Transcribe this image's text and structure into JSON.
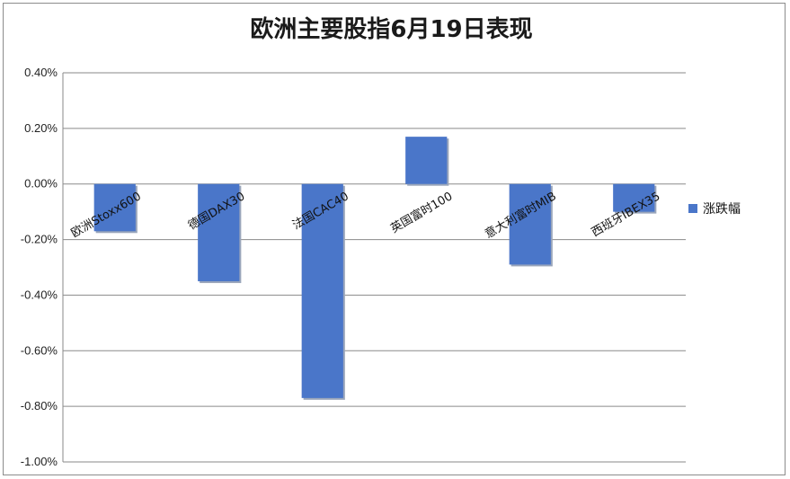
{
  "chart_data": {
    "type": "bar",
    "title": "欧洲主要股指6月19日表现",
    "categories": [
      "欧洲Stoxx600",
      "德国DAX30",
      "法国CAC40",
      "英国富时100",
      "意大利富时MIB",
      "西班牙IBEX35"
    ],
    "series": [
      {
        "name": "涨跌幅",
        "values": [
          -0.17,
          -0.35,
          -0.77,
          0.17,
          -0.29,
          -0.1
        ],
        "color": "#4a76c9"
      }
    ],
    "ylim": [
      -1.0,
      0.4
    ],
    "yticks": [
      "0.40%",
      "0.20%",
      "0.00%",
      "-0.20%",
      "-0.40%",
      "-0.60%",
      "-0.80%",
      "-1.00%"
    ],
    "ytick_values": [
      0.4,
      0.2,
      0.0,
      -0.2,
      -0.4,
      -0.6,
      -0.8,
      -1.0
    ],
    "grid": true,
    "legend": "right"
  }
}
